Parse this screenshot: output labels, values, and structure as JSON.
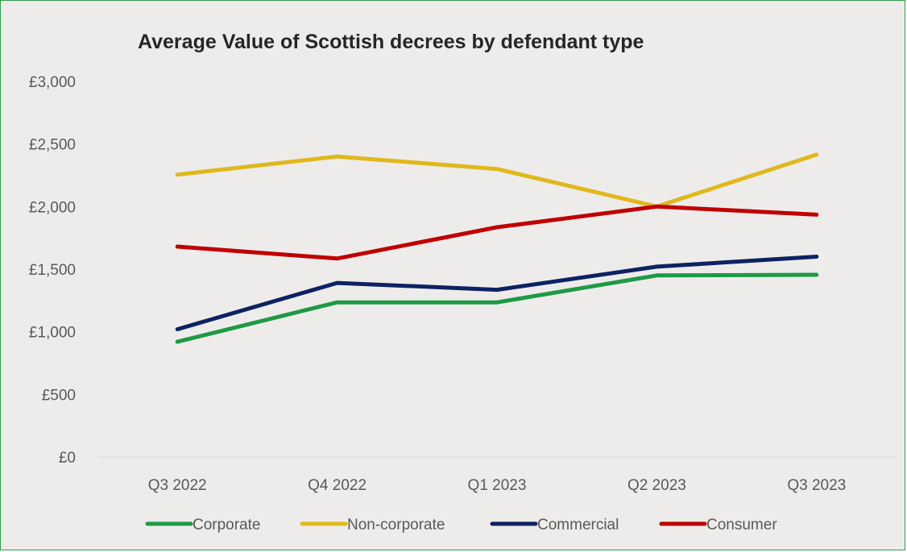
{
  "chart_data": {
    "type": "line",
    "title": "Average Value of Scottish decrees by defendant type",
    "xlabel": "",
    "ylabel": "",
    "categories": [
      "Q3 2022",
      "Q4 2022",
      "Q1 2023",
      "Q2 2023",
      "Q3 2023"
    ],
    "ylim": [
      0,
      3000
    ],
    "y_ticks": [
      0,
      500,
      1000,
      1500,
      2000,
      2500,
      3000
    ],
    "y_tick_labels": [
      "£0",
      "£500",
      "£1,000",
      "£1,500",
      "£2,000",
      "£2,500",
      "£3,000"
    ],
    "grid": "horizontal baseline only",
    "legend_position": "bottom",
    "series": [
      {
        "name": "Corporate",
        "color": "#1e9a45",
        "values": [
          920,
          1235,
          1235,
          1450,
          1455
        ]
      },
      {
        "name": "Non-corporate",
        "color": "#e0b81c",
        "values": [
          2255,
          2400,
          2300,
          2000,
          2415
        ]
      },
      {
        "name": "Commercial",
        "color": "#0d2262",
        "values": [
          1020,
          1390,
          1335,
          1520,
          1600
        ]
      },
      {
        "name": "Consumer",
        "color": "#c00000",
        "values": [
          1680,
          1585,
          1835,
          2000,
          1935
        ]
      }
    ]
  }
}
